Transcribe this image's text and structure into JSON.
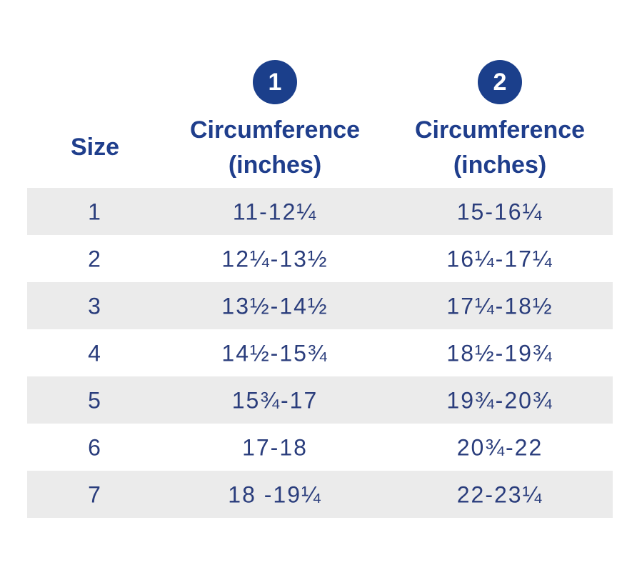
{
  "header": {
    "size_label": "Size",
    "columns": [
      {
        "badge": "1",
        "title_lines": [
          "Circumference",
          "(inches)"
        ]
      },
      {
        "badge": "2",
        "title_lines": [
          "Circumference",
          "(inches)"
        ]
      }
    ]
  },
  "table": {
    "rows": [
      [
        "1",
        "11-12¼",
        "15-16¼"
      ],
      [
        "2",
        "12¼-13½",
        "16¼-17¼"
      ],
      [
        "3",
        "13½-14½",
        "17¼-18½"
      ],
      [
        "4",
        "14½-15¾",
        "18½-19¾"
      ],
      [
        "5",
        "15¾-17",
        "19¾-20¾"
      ],
      [
        "6",
        "17-18",
        "20¾-22"
      ],
      [
        "7",
        "18 -19¼",
        "22-23¼"
      ]
    ]
  }
}
